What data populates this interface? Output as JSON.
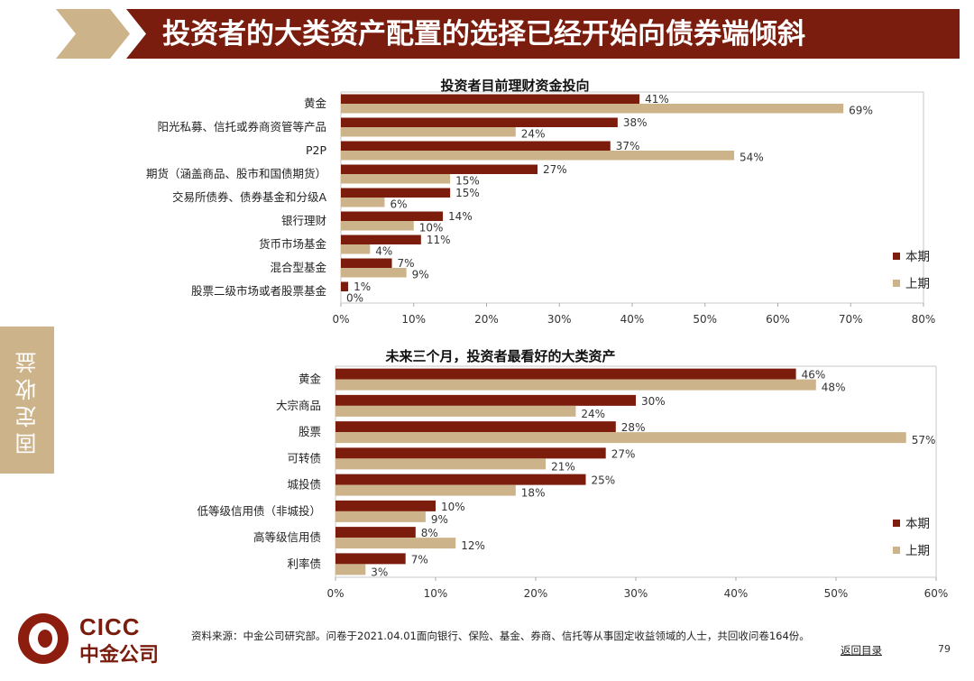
{
  "header": {
    "title": "投资者的大类资产配置的选择已经开始向债券端倾斜"
  },
  "side_tab": {
    "label": "固定收益"
  },
  "chart_data": [
    {
      "type": "bar",
      "orientation": "horizontal",
      "title": "投资者目前理财资金投向",
      "categories": [
        "黄金",
        "阳光私募、信托或券商资管等产品",
        "P2P",
        "期货（涵盖商品、股市和国债期货）",
        "交易所债券、债券基金和分级A",
        "银行理财",
        "货币市场基金",
        "混合型基金",
        "股票二级市场或者股票基金"
      ],
      "series": [
        {
          "name": "本期",
          "values": [
            41,
            38,
            37,
            27,
            15,
            14,
            11,
            7,
            1
          ],
          "labels": [
            "41%",
            "38%",
            "37%",
            "27%",
            "15%",
            "14%",
            "11%",
            "7%",
            "1%"
          ]
        },
        {
          "name": "上期",
          "values": [
            69,
            24,
            54,
            15,
            6,
            10,
            4,
            9,
            0
          ],
          "labels": [
            "69%",
            "24%",
            "54%",
            "15%",
            "6%",
            "10%",
            "4%",
            "9%",
            "0%"
          ]
        }
      ],
      "xlim": [
        0,
        80
      ],
      "xticks": [
        "0%",
        "10%",
        "20%",
        "30%",
        "40%",
        "50%",
        "60%",
        "70%",
        "80%"
      ],
      "legend_position": "right",
      "colors": {
        "本期": "#7b1c0d",
        "上期": "#cdb38a"
      }
    },
    {
      "type": "bar",
      "orientation": "horizontal",
      "title": "未来三个月，投资者最看好的大类资产",
      "categories": [
        "黄金",
        "大宗商品",
        "股票",
        "可转债",
        "城投债",
        "低等级信用债（非城投）",
        "高等级信用债",
        "利率债"
      ],
      "series": [
        {
          "name": "本期",
          "values": [
            46,
            30,
            28,
            27,
            25,
            10,
            8,
            7
          ],
          "labels": [
            "46%",
            "30%",
            "28%",
            "27%",
            "25%",
            "10%",
            "8%",
            "7%"
          ]
        },
        {
          "name": "上期",
          "values": [
            48,
            24,
            57,
            21,
            18,
            9,
            12,
            3
          ],
          "labels": [
            "48%",
            "24%",
            "57%",
            "21%",
            "18%",
            "9%",
            "12%",
            "3%"
          ]
        }
      ],
      "xlim": [
        0,
        60
      ],
      "xticks": [
        "0%",
        "10%",
        "20%",
        "30%",
        "40%",
        "50%",
        "60%"
      ],
      "legend_position": "right",
      "colors": {
        "本期": "#7b1c0d",
        "上期": "#cdb38a"
      }
    }
  ],
  "footer": {
    "logo_text": "CICC",
    "logo_cn": "中金公司",
    "source": "资料来源：中金公司研究部。问卷于2021.04.01面向银行、保险、基金、券商、信托等从事固定收益领域的人士，共回收问卷164份。",
    "back_link": "返回目录",
    "page_number": "79"
  }
}
